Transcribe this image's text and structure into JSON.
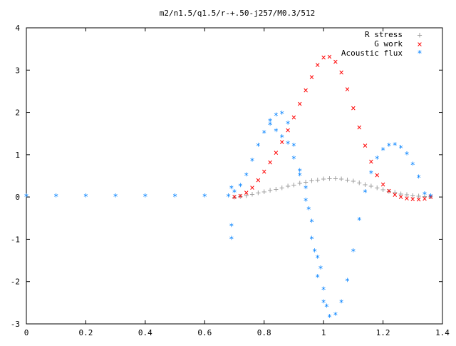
{
  "chart_data": {
    "type": "scatter",
    "title": "m2/n1.5/q1.5/r-+.50-j257/M0.3/512",
    "xlabel": "",
    "ylabel": "",
    "xlim": [
      0,
      1.4
    ],
    "ylim": [
      -3,
      4
    ],
    "xticks": [
      "0",
      "0.2",
      "0.4",
      "0.6",
      "0.8",
      "1",
      "1.2",
      "1.4"
    ],
    "yticks": [
      "-3",
      "-2",
      "-1",
      "0",
      "1",
      "2",
      "3",
      "4"
    ],
    "grid": false,
    "legend_position": "top-right",
    "series": [
      {
        "name": "R stress",
        "marker": "plus",
        "color": "#a0a0a0",
        "points": [
          [
            0.7,
            0.0
          ],
          [
            0.72,
            0.02
          ],
          [
            0.74,
            0.04
          ],
          [
            0.76,
            0.07
          ],
          [
            0.78,
            0.1
          ],
          [
            0.8,
            0.13
          ],
          [
            0.82,
            0.16
          ],
          [
            0.84,
            0.19
          ],
          [
            0.86,
            0.22
          ],
          [
            0.88,
            0.26
          ],
          [
            0.9,
            0.29
          ],
          [
            0.92,
            0.33
          ],
          [
            0.94,
            0.36
          ],
          [
            0.96,
            0.39
          ],
          [
            0.98,
            0.41
          ],
          [
            1.0,
            0.43
          ],
          [
            1.02,
            0.44
          ],
          [
            1.04,
            0.44
          ],
          [
            1.06,
            0.43
          ],
          [
            1.08,
            0.41
          ],
          [
            1.1,
            0.38
          ],
          [
            1.12,
            0.34
          ],
          [
            1.14,
            0.3
          ],
          [
            1.16,
            0.26
          ],
          [
            1.18,
            0.22
          ],
          [
            1.2,
            0.18
          ],
          [
            1.22,
            0.14
          ],
          [
            1.24,
            0.11
          ],
          [
            1.26,
            0.08
          ],
          [
            1.28,
            0.06
          ],
          [
            1.3,
            0.04
          ],
          [
            1.32,
            0.03
          ],
          [
            1.34,
            0.02
          ],
          [
            1.36,
            0.01
          ]
        ]
      },
      {
        "name": "G work",
        "marker": "x",
        "color": "#ff0000",
        "points": [
          [
            0.7,
            0.0
          ],
          [
            0.72,
            0.03
          ],
          [
            0.74,
            0.1
          ],
          [
            0.76,
            0.22
          ],
          [
            0.78,
            0.4
          ],
          [
            0.8,
            0.6
          ],
          [
            0.82,
            0.82
          ],
          [
            0.84,
            1.05
          ],
          [
            0.86,
            1.3
          ],
          [
            0.88,
            1.58
          ],
          [
            0.9,
            1.88
          ],
          [
            0.92,
            2.2
          ],
          [
            0.94,
            2.52
          ],
          [
            0.96,
            2.84
          ],
          [
            0.98,
            3.12
          ],
          [
            1.0,
            3.3
          ],
          [
            1.02,
            3.32
          ],
          [
            1.04,
            3.2
          ],
          [
            1.06,
            2.95
          ],
          [
            1.08,
            2.55
          ],
          [
            1.1,
            2.1
          ],
          [
            1.12,
            1.65
          ],
          [
            1.14,
            1.22
          ],
          [
            1.16,
            0.84
          ],
          [
            1.18,
            0.52
          ],
          [
            1.2,
            0.3
          ],
          [
            1.22,
            0.15
          ],
          [
            1.24,
            0.05
          ],
          [
            1.26,
            0.0
          ],
          [
            1.28,
            -0.03
          ],
          [
            1.3,
            -0.05
          ],
          [
            1.32,
            -0.06
          ],
          [
            1.34,
            -0.04
          ],
          [
            1.36,
            0.0
          ]
        ]
      },
      {
        "name": "Acoustic flux",
        "marker": "star",
        "color": "#0080ff",
        "points": [
          [
            0.0,
            0.0
          ],
          [
            0.1,
            0.0
          ],
          [
            0.2,
            0.0
          ],
          [
            0.3,
            0.0
          ],
          [
            0.4,
            0.0
          ],
          [
            0.5,
            0.0
          ],
          [
            0.6,
            0.0
          ],
          [
            0.68,
            0.0
          ],
          [
            0.69,
            0.2
          ],
          [
            0.69,
            -0.7
          ],
          [
            0.69,
            -1.0
          ],
          [
            0.7,
            0.1
          ],
          [
            0.72,
            0.25
          ],
          [
            0.74,
            0.5
          ],
          [
            0.76,
            0.85
          ],
          [
            0.78,
            1.2
          ],
          [
            0.8,
            1.5
          ],
          [
            0.82,
            1.78
          ],
          [
            0.84,
            1.92
          ],
          [
            0.86,
            1.96
          ],
          [
            0.88,
            1.72
          ],
          [
            0.9,
            1.2
          ],
          [
            0.92,
            0.6
          ],
          [
            0.94,
            -0.1
          ],
          [
            0.96,
            -1.0
          ],
          [
            0.98,
            -1.9
          ],
          [
            1.0,
            -2.5
          ],
          [
            1.02,
            -2.85
          ],
          [
            1.04,
            -2.8
          ],
          [
            1.06,
            -2.5
          ],
          [
            1.08,
            -2.0
          ],
          [
            1.1,
            -1.3
          ],
          [
            1.12,
            -0.55
          ],
          [
            1.14,
            0.1
          ],
          [
            1.16,
            0.55
          ],
          [
            1.18,
            0.9
          ],
          [
            1.2,
            1.1
          ],
          [
            1.22,
            1.2
          ],
          [
            1.24,
            1.22
          ],
          [
            1.26,
            1.15
          ],
          [
            1.28,
            1.0
          ],
          [
            1.3,
            0.75
          ],
          [
            1.32,
            0.45
          ],
          [
            1.34,
            0.05
          ],
          [
            1.36,
            0.0
          ],
          [
            0.82,
            1.7
          ],
          [
            0.84,
            1.55
          ],
          [
            0.86,
            1.4
          ],
          [
            0.88,
            1.25
          ],
          [
            0.9,
            0.9
          ],
          [
            0.92,
            0.5
          ],
          [
            0.94,
            0.2
          ],
          [
            0.95,
            -0.3
          ],
          [
            0.96,
            -0.6
          ],
          [
            0.97,
            -1.3
          ],
          [
            0.98,
            -1.45
          ],
          [
            0.99,
            -1.7
          ],
          [
            1.0,
            -2.2
          ],
          [
            1.01,
            -2.6
          ]
        ]
      }
    ]
  }
}
